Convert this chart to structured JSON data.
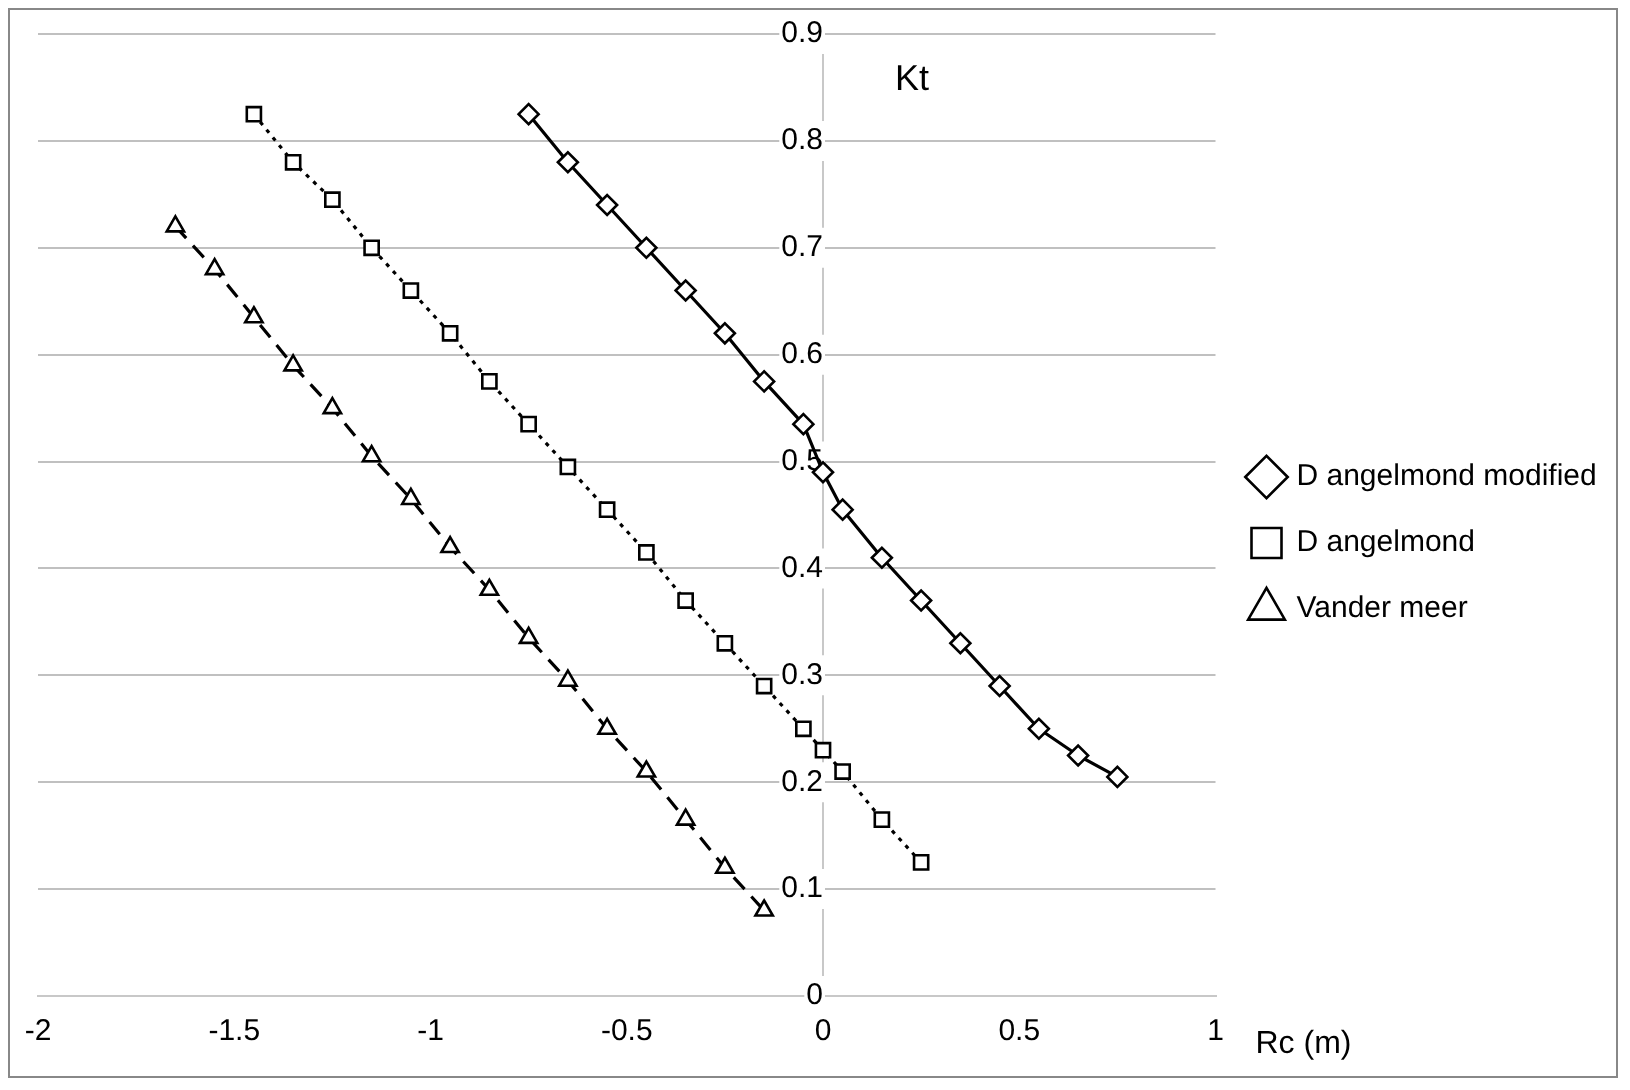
{
  "chart_data": {
    "type": "line",
    "ylabel": "Kt",
    "xlabel": "Rc (m)",
    "xlim": [
      -2,
      1
    ],
    "xticks": [
      -2,
      -1.5,
      -1,
      -0.5,
      0,
      0.5,
      1
    ],
    "ylim": [
      0,
      0.9
    ],
    "yticks": [
      0,
      0.1,
      0.2,
      0.3,
      0.4,
      0.5,
      0.6,
      0.7,
      0.8,
      0.9
    ],
    "grid": "y",
    "legend": "right",
    "series": [
      {
        "name": "D angelmond modified",
        "color": "#000000",
        "marker": "diamond",
        "line_style": "solid",
        "x": [
          -0.75,
          -0.65,
          -0.55,
          -0.45,
          -0.35,
          -0.25,
          -0.15,
          -0.05,
          0,
          0.05,
          0.15,
          0.25,
          0.35,
          0.45,
          0.55,
          0.65,
          0.75
        ],
        "values": [
          0.825,
          0.78,
          0.74,
          0.7,
          0.66,
          0.62,
          0.575,
          0.535,
          0.49,
          0.455,
          0.41,
          0.37,
          0.33,
          0.29,
          0.25,
          0.225,
          0.205
        ]
      },
      {
        "name": "D angelmond",
        "color": "#000000",
        "marker": "square",
        "line_style": "dotted",
        "x": [
          -1.45,
          -1.35,
          -1.25,
          -1.15,
          -1.05,
          -0.95,
          -0.85,
          -0.75,
          -0.65,
          -0.55,
          -0.45,
          -0.35,
          -0.25,
          -0.15,
          -0.05,
          0,
          0.05,
          0.15,
          0.25
        ],
        "values": [
          0.825,
          0.78,
          0.745,
          0.7,
          0.66,
          0.62,
          0.575,
          0.535,
          0.495,
          0.455,
          0.415,
          0.37,
          0.33,
          0.29,
          0.25,
          0.23,
          0.21,
          0.165,
          0.125
        ]
      },
      {
        "name": "Vander meer",
        "color": "#000000",
        "marker": "triangle",
        "line_style": "dashed",
        "x": [
          -1.65,
          -1.55,
          -1.45,
          -1.35,
          -1.25,
          -1.15,
          -1.05,
          -0.95,
          -0.85,
          -0.75,
          -0.65,
          -0.55,
          -0.45,
          -0.35,
          -0.25,
          -0.15
        ],
        "values": [
          0.72,
          0.68,
          0.635,
          0.59,
          0.55,
          0.505,
          0.465,
          0.42,
          0.38,
          0.335,
          0.295,
          0.25,
          0.21,
          0.165,
          0.12,
          0.08
        ]
      }
    ]
  }
}
